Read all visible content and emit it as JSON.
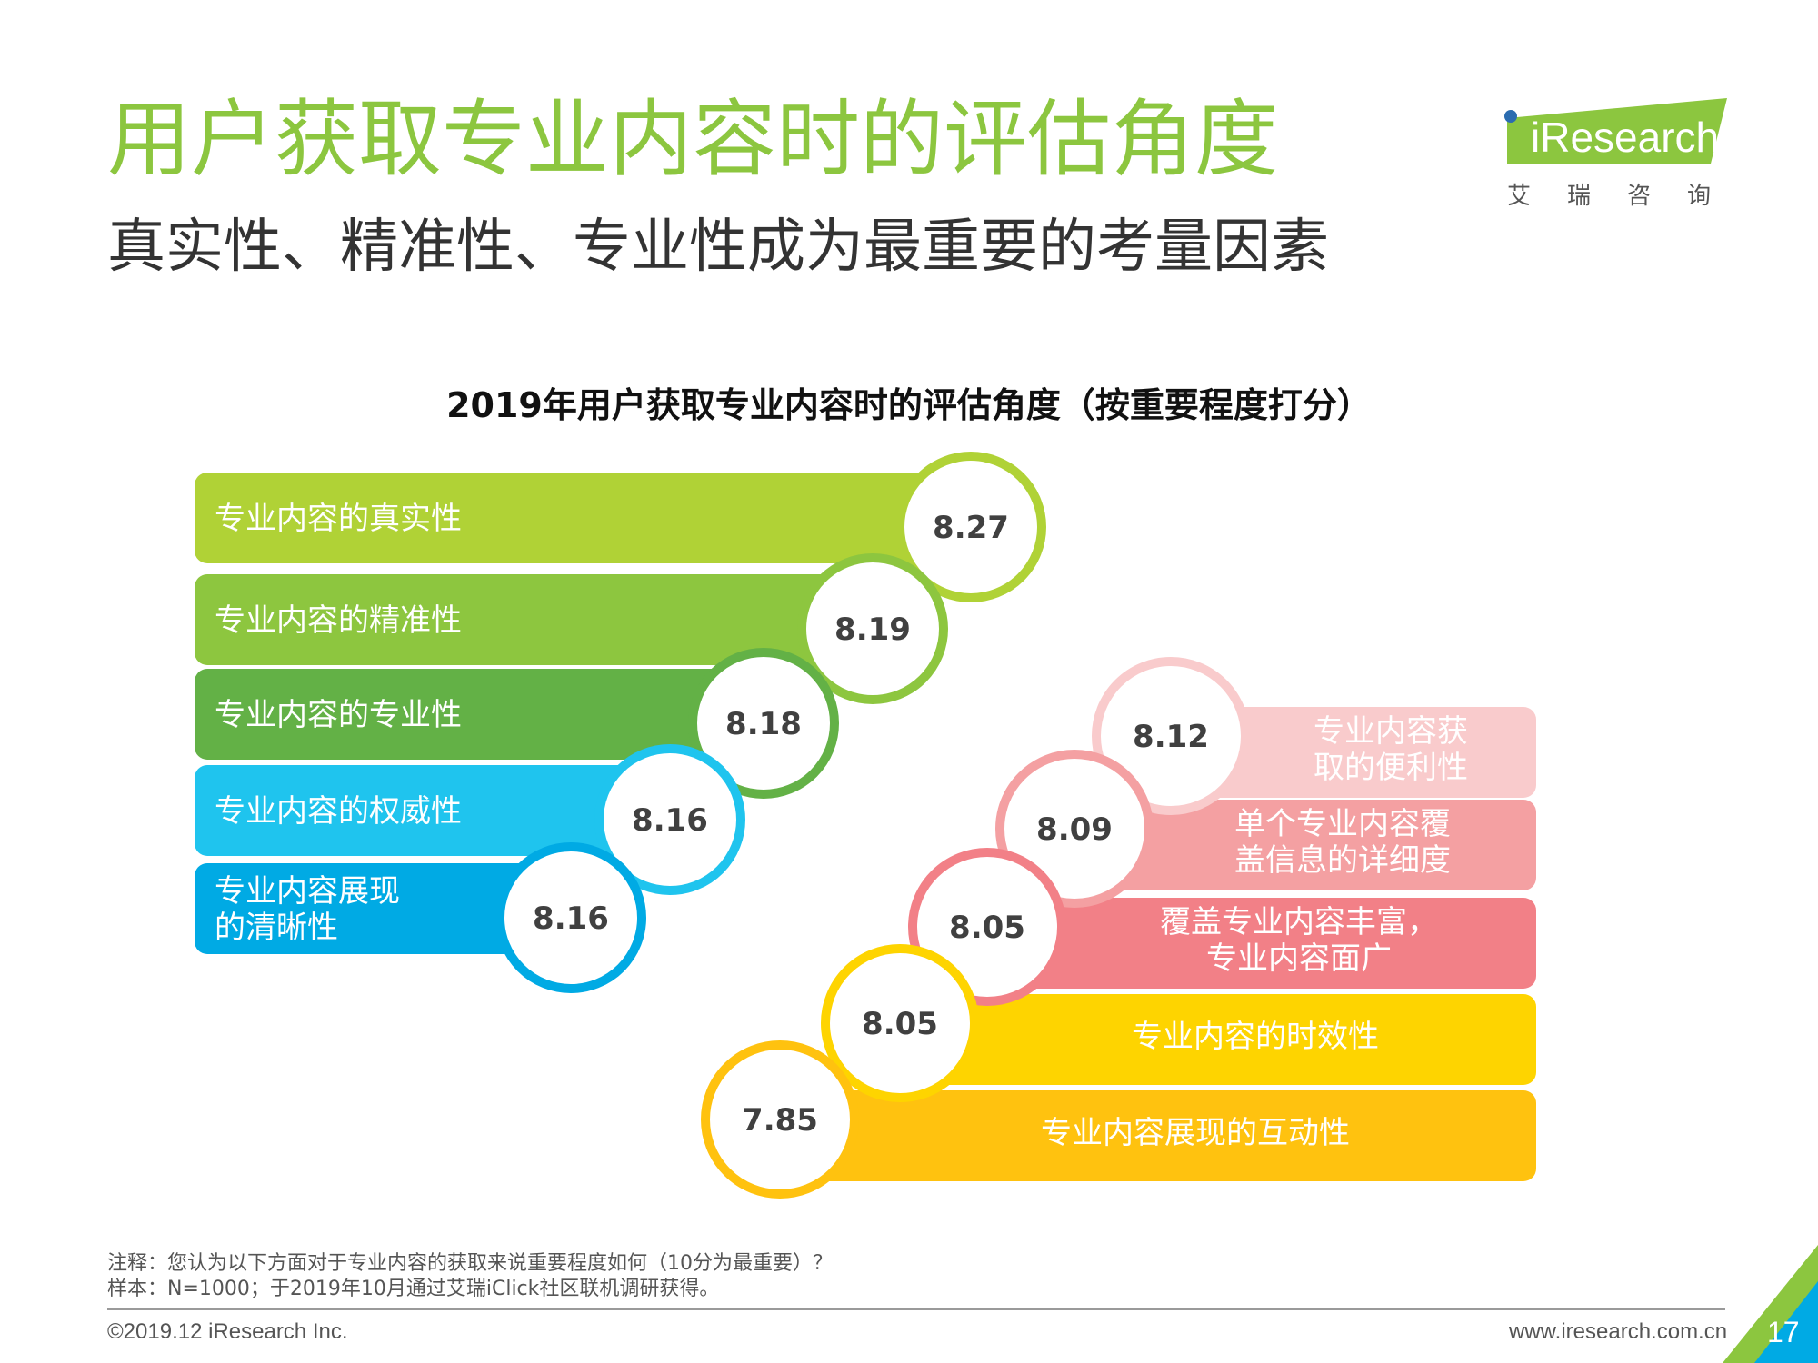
{
  "header": {
    "title": "用户获取专业内容时的评估角度",
    "subtitle": "真实性、精准性、专业性成为最重要的考量因素"
  },
  "logo": {
    "text": "iResearch",
    "sub": "艾瑞咨询",
    "color": "#8cc63f",
    "dot_color": "#2b6cb0"
  },
  "chart_data": {
    "type": "bar",
    "title": "2019年用户获取专业内容时的评估角度（按重要程度打分）",
    "unit": "分",
    "scale_max": 10,
    "groups": [
      {
        "items": [
          {
            "label": [
              "专业内容的真实性"
            ],
            "value": 8.27,
            "color": "#b0d236"
          },
          {
            "label": [
              "专业内容的精准性"
            ],
            "value": 8.19,
            "color": "#8dc63f"
          },
          {
            "label": [
              "专业内容的专业性"
            ],
            "value": 8.18,
            "color": "#63b146"
          },
          {
            "label": [
              "专业内容的权威性"
            ],
            "value": 8.16,
            "color": "#1fc4ee"
          },
          {
            "label": [
              "专业内容展现",
              "的清晰性"
            ],
            "value": 8.16,
            "color": "#00aae4"
          }
        ]
      },
      {
        "items": [
          {
            "label": [
              "专业内容获",
              "取的便利性"
            ],
            "value": 8.12,
            "color": "#f9cbcc"
          },
          {
            "label": [
              "单个专业内容覆",
              "盖信息的详细度"
            ],
            "value": 8.09,
            "color": "#f4a0a2"
          },
          {
            "label": [
              "覆盖专业内容丰富，",
              "专业内容面广"
            ],
            "value": 8.05,
            "color": "#f28087"
          },
          {
            "label": [
              "专业内容的时效性"
            ],
            "value": 8.05,
            "color": "#fed400"
          },
          {
            "label": [
              "专业内容展现的互动性"
            ],
            "value": 7.85,
            "color": "#ffc20f"
          }
        ]
      }
    ]
  },
  "notes": {
    "note": "注释：您认为以下方面对于专业内容的获取来说重要程度如何（10分为最重要）？",
    "sample": "样本：N=1000；于2019年10月通过艾瑞iClick社区联机调研获得。"
  },
  "footer": {
    "copyright": "©2019.12 iResearch Inc.",
    "website": "www.iresearch.com.cn",
    "page": "17",
    "accent_colors": [
      "#00aae4",
      "#8cc63f"
    ]
  }
}
